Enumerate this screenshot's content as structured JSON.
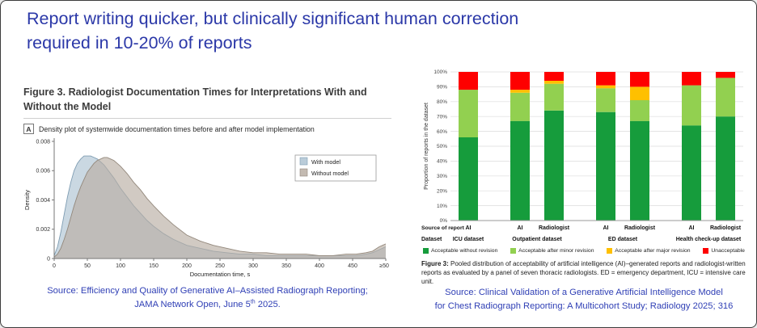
{
  "slide": {
    "title_line1": "Report writing quicker, but clinically significant human correction",
    "title_line2": "required in 10-20% of reports"
  },
  "colors": {
    "title_text": "#2b38a8",
    "source_text": "#2f3fb5",
    "with_model_fill": "#aec3d2",
    "with_model_stroke": "#7e9cb2",
    "without_model_fill": "#b9aea3",
    "without_model_stroke": "#93887c"
  },
  "left_figure": {
    "title": "Figure 3.  Radiologist Documentation Times for Interpretations With and Without the Model",
    "panel_label": "A",
    "panel_caption": "Density plot of systemwide documentation times before and after model implementation",
    "source_line1": "Source: Efficiency and Quality of Generative AI–Assisted Radiograph Reporting;",
    "source_line2_pre": "JAMA Network Open, June 5",
    "source_line2_sup": "th",
    "source_line2_post": " 2025."
  },
  "right_figure": {
    "caption_label": "Figure 3:",
    "caption_text": "Pooled distribution of acceptability of artificial intelligence (AI)–generated reports and radiologist-written reports as evaluated by a panel of seven thoracic radiologists. ED = emergency department, ICU = intensive care unit.",
    "source_line1": "Source: Clinical Validation of a Generative Artificial Intelligence Model",
    "source_line2": "for Chest Radiograph Reporting: A Multicohort Study; Radiology 2025; 316"
  },
  "chart_data": [
    {
      "type": "area",
      "title": "Density plot of systemwide documentation times before and after model implementation",
      "xlabel": "Documentation time, s",
      "ylabel": "Density",
      "xlim": [
        0,
        500
      ],
      "ylim": [
        0,
        0.008
      ],
      "x_tick_labels": [
        "0",
        "50",
        "100",
        "150",
        "200",
        "250",
        "300",
        "350",
        "400",
        "450",
        "≥500"
      ],
      "y_tick_labels": [
        "0",
        "0.002",
        "0.004",
        "0.006",
        "0.008"
      ],
      "grid": false,
      "legend_position": "top-right",
      "series": [
        {
          "name": "With model",
          "color": "#aec3d2",
          "stroke": "#7e9cb2",
          "x": [
            0,
            5,
            10,
            15,
            20,
            25,
            30,
            35,
            40,
            45,
            50,
            55,
            60,
            65,
            70,
            75,
            80,
            90,
            100,
            110,
            120,
            130,
            140,
            150,
            165,
            180,
            200,
            220,
            240,
            260,
            280,
            300,
            320,
            340,
            360,
            380,
            400,
            420,
            440,
            455,
            470,
            480,
            490,
            495,
            500
          ],
          "y": [
            0.0002,
            0.0008,
            0.0018,
            0.003,
            0.0042,
            0.0052,
            0.006,
            0.0065,
            0.0068,
            0.007,
            0.007,
            0.007,
            0.0069,
            0.0068,
            0.0066,
            0.0064,
            0.0061,
            0.0055,
            0.0048,
            0.0042,
            0.0036,
            0.0031,
            0.0026,
            0.0022,
            0.0017,
            0.0013,
            0.0009,
            0.0007,
            0.0005,
            0.0004,
            0.0003,
            0.0003,
            0.0002,
            0.0002,
            0.0002,
            0.0002,
            0.0002,
            0.0002,
            0.0002,
            0.0002,
            0.0003,
            0.0004,
            0.0006,
            0.0007,
            0.0008
          ]
        },
        {
          "name": "Without model",
          "color": "#b9aea3",
          "stroke": "#93887c",
          "x": [
            0,
            5,
            10,
            15,
            20,
            25,
            30,
            35,
            40,
            45,
            50,
            55,
            60,
            65,
            70,
            75,
            80,
            85,
            90,
            95,
            100,
            110,
            120,
            130,
            140,
            150,
            165,
            180,
            200,
            220,
            240,
            260,
            280,
            300,
            320,
            340,
            360,
            380,
            400,
            420,
            440,
            455,
            470,
            480,
            490,
            495,
            500
          ],
          "y": [
            0.0001,
            0.0003,
            0.0007,
            0.0013,
            0.002,
            0.0028,
            0.0036,
            0.0043,
            0.0049,
            0.0054,
            0.0059,
            0.0062,
            0.0065,
            0.0067,
            0.0068,
            0.0069,
            0.0069,
            0.0068,
            0.0067,
            0.0065,
            0.0063,
            0.0058,
            0.0052,
            0.0047,
            0.0041,
            0.0036,
            0.0029,
            0.0023,
            0.0016,
            0.0012,
            0.0009,
            0.0007,
            0.0005,
            0.0004,
            0.0004,
            0.0003,
            0.0003,
            0.0003,
            0.0002,
            0.0002,
            0.0003,
            0.0003,
            0.0004,
            0.0005,
            0.0008,
            0.0009,
            0.001
          ]
        }
      ]
    },
    {
      "type": "bar",
      "stacked": true,
      "ylabel": "Proportion of reports in the dataset",
      "ylim": [
        0,
        100
      ],
      "y_tick_labels": [
        "0%",
        "10%",
        "20%",
        "30%",
        "40%",
        "50%",
        "60%",
        "70%",
        "80%",
        "90%",
        "100%"
      ],
      "grid": true,
      "row_headers": {
        "source": "Source of report",
        "dataset": "Dataset"
      },
      "segments": [
        {
          "name": "Acceptable without revision",
          "color": "#169c3c"
        },
        {
          "name": "Acceptable after minor revision",
          "color": "#92d050"
        },
        {
          "name": "Acceptable after major revision",
          "color": "#ffc000"
        },
        {
          "name": "Unacceptable",
          "color": "#fe0000"
        }
      ],
      "groups": [
        {
          "dataset": "ICU dataset",
          "bars": [
            {
              "source": "AI",
              "values": [
                56,
                32,
                0,
                12
              ]
            }
          ]
        },
        {
          "dataset": "Outpatient dataset",
          "bars": [
            {
              "source": "AI",
              "values": [
                67,
                19,
                2,
                12
              ]
            },
            {
              "source": "Radiologist",
              "values": [
                74,
                18,
                2,
                6
              ]
            }
          ]
        },
        {
          "dataset": "ED dataset",
          "bars": [
            {
              "source": "AI",
              "values": [
                73,
                16,
                2,
                9
              ]
            },
            {
              "source": "Radiologist",
              "values": [
                67,
                14,
                9,
                10
              ]
            }
          ]
        },
        {
          "dataset": "Health check-up dataset",
          "bars": [
            {
              "source": "AI",
              "values": [
                64,
                27,
                0,
                9
              ]
            },
            {
              "source": "Radiologist",
              "values": [
                70,
                26,
                0,
                4
              ]
            }
          ]
        }
      ]
    }
  ]
}
